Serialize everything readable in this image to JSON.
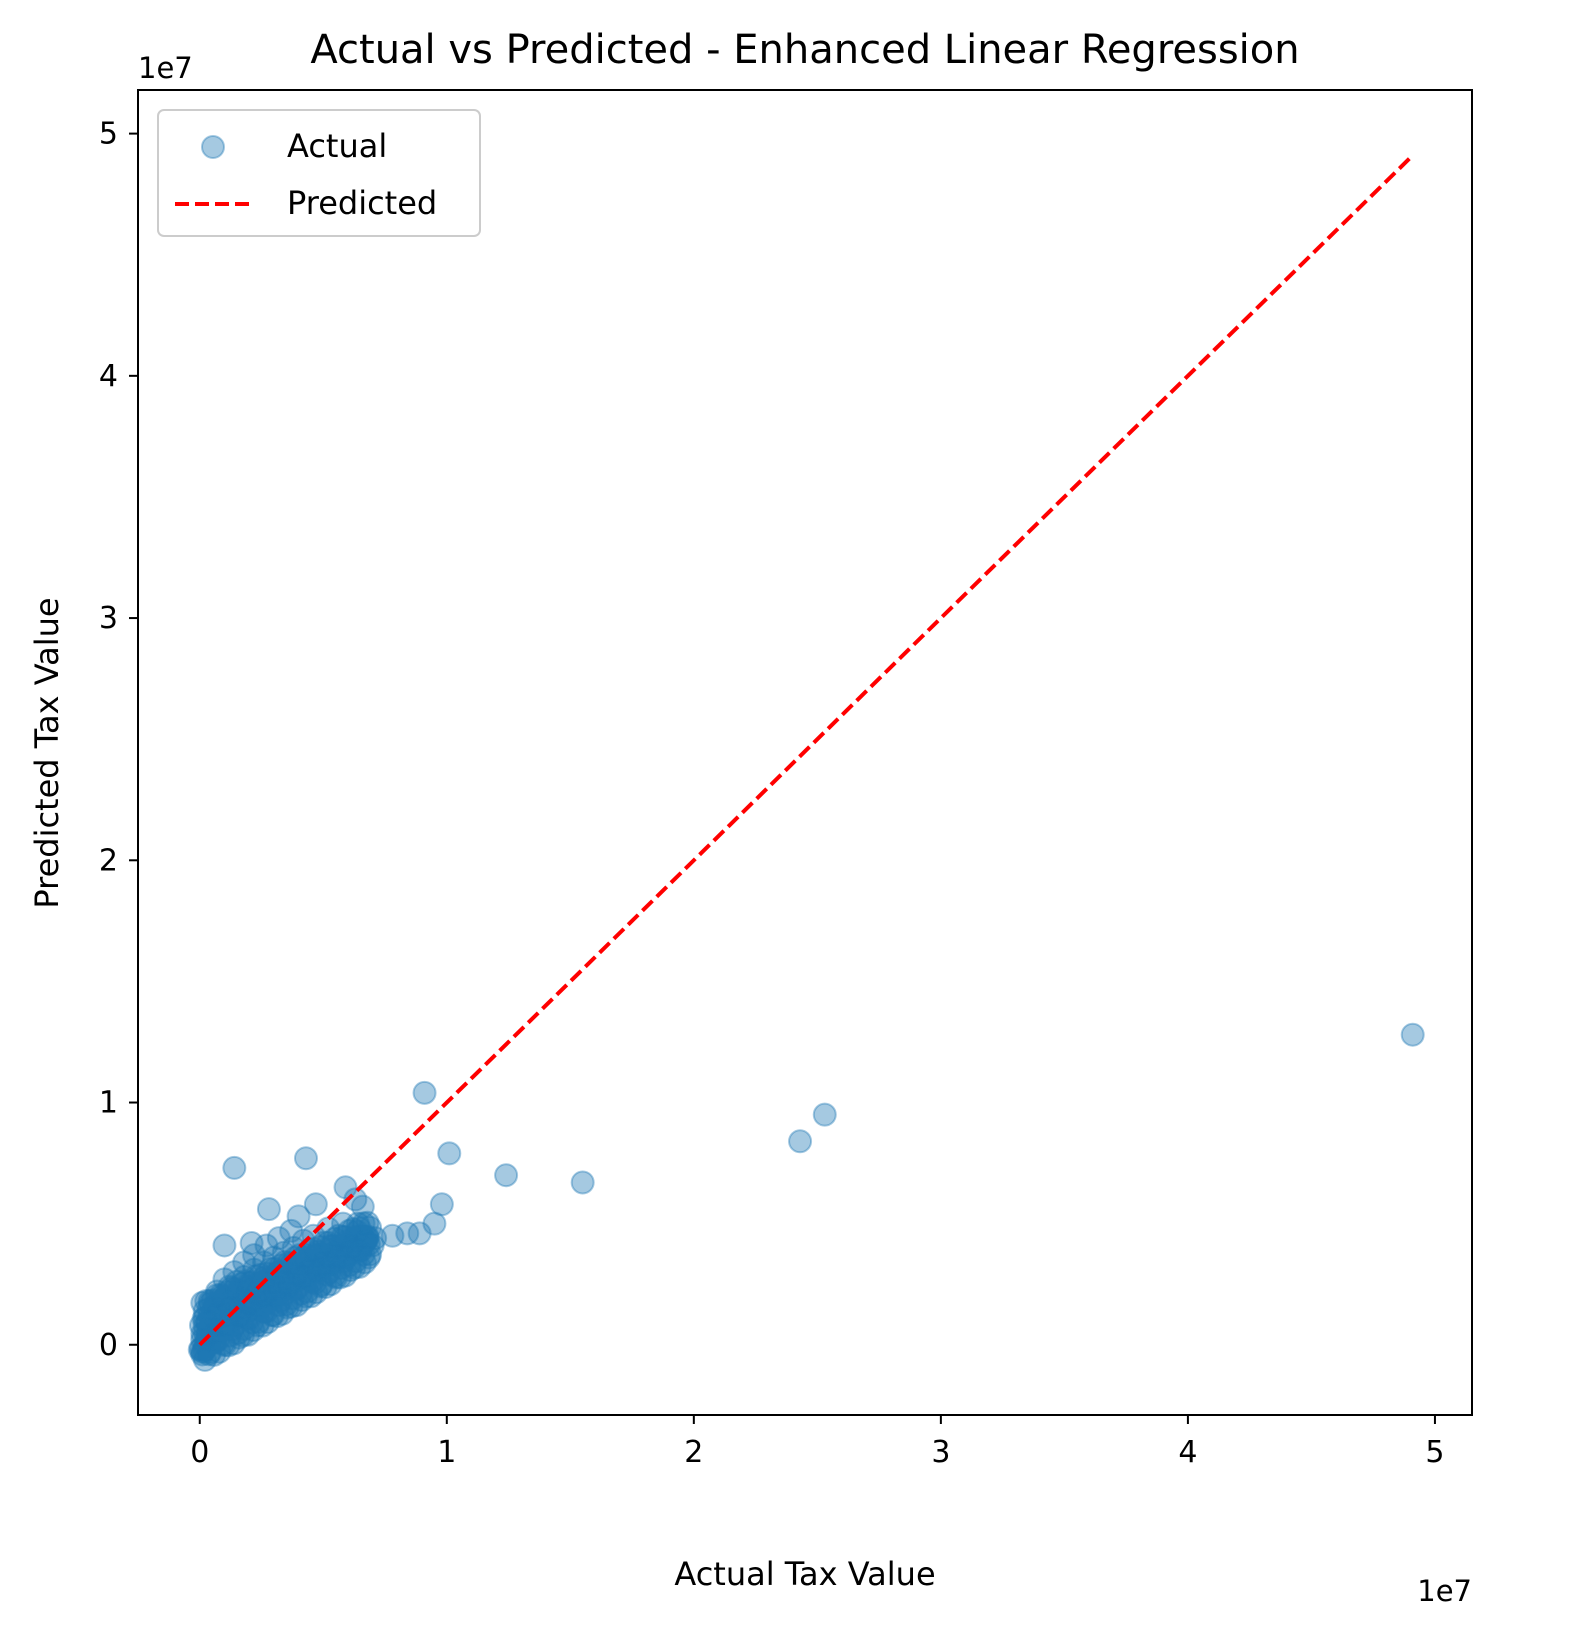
{
  "chart_data": {
    "type": "scatter",
    "title": "Actual vs Predicted - Enhanced Linear Regression",
    "xlabel": "Actual Tax Value",
    "ylabel": "Predicted Tax Value",
    "x_offset_text": "1e7",
    "y_offset_text": "1e7",
    "xlim": [
      -0.25,
      5.15
    ],
    "ylim": [
      -0.29,
      5.18
    ],
    "x_ticks": [
      0,
      1,
      2,
      3,
      4,
      5
    ],
    "x_tick_labels": [
      "0",
      "1",
      "2",
      "3",
      "4",
      "5"
    ],
    "y_ticks": [
      0,
      1,
      2,
      3,
      4,
      5
    ],
    "y_tick_labels": [
      "0",
      "1",
      "2",
      "3",
      "4",
      "5"
    ],
    "grid": false,
    "legend": {
      "position": "upper-left",
      "entries": [
        "Actual",
        "Predicted"
      ]
    },
    "series": [
      {
        "name": "Actual",
        "kind": "scatter",
        "color": "#1f77b4",
        "alpha": 0.4,
        "x": [
          0.01,
          0.02,
          0.03,
          0.05,
          0.07,
          0.1,
          0.13,
          0.16,
          0.2,
          0.25,
          0.3,
          0.35,
          0.4,
          0.45,
          0.5,
          0.55,
          0.6,
          0.65,
          0.7,
          0.02,
          0.04,
          0.06,
          0.09,
          0.12,
          0.15,
          0.18,
          0.22,
          0.26,
          0.3,
          0.34,
          0.38,
          0.42,
          0.46,
          0.52,
          0.58,
          0.64,
          0.02,
          0.04,
          0.07,
          0.1,
          0.14,
          0.18,
          0.22,
          0.27,
          0.32,
          0.37,
          0.05,
          0.08,
          0.11,
          0.15,
          0.19,
          0.24,
          0.29,
          0.01,
          0.02,
          0.03,
          0.05,
          0.08,
          0.11,
          0.14,
          0.17,
          0.2,
          0.23,
          0.28,
          0.33,
          0.38,
          0.43,
          0.48,
          0.53,
          0.58,
          0.63,
          0.68,
          0.0,
          0.01,
          0.02,
          0.04,
          0.06,
          0.12,
          0.16,
          0.2,
          0.26,
          0.31,
          0.36,
          0.41,
          0.47,
          0.56,
          0.62,
          0.67,
          0.71,
          0.78,
          0.84,
          0.89,
          0.95,
          0.91,
          1.01,
          0.98,
          1.24,
          1.55,
          2.43,
          2.53,
          4.91,
          0.14,
          0.43,
          0.59,
          0.28,
          0.47,
          0.1,
          0.21,
          0.4,
          0.63,
          0.66
        ],
        "y": [
          -0.03,
          0.0,
          0.02,
          0.04,
          0.06,
          0.08,
          0.1,
          0.12,
          0.14,
          0.16,
          0.2,
          0.23,
          0.27,
          0.29,
          0.32,
          0.35,
          0.37,
          0.39,
          0.41,
          0.08,
          0.12,
          0.16,
          0.2,
          0.24,
          0.26,
          0.28,
          0.31,
          0.34,
          0.36,
          0.38,
          0.4,
          0.43,
          0.45,
          0.48,
          0.5,
          0.5,
          0.14,
          0.18,
          0.22,
          0.27,
          0.3,
          0.34,
          0.37,
          0.41,
          0.44,
          0.47,
          0.05,
          0.08,
          0.11,
          0.15,
          0.18,
          0.22,
          0.26,
          0.02,
          0.05,
          0.09,
          0.12,
          0.15,
          0.18,
          0.2,
          0.22,
          0.24,
          0.25,
          0.27,
          0.3,
          0.32,
          0.35,
          0.37,
          0.39,
          0.41,
          0.43,
          0.44,
          -0.02,
          -0.04,
          -0.02,
          0.0,
          0.02,
          0.1,
          0.14,
          0.17,
          0.21,
          0.24,
          0.27,
          0.31,
          0.35,
          0.39,
          0.42,
          0.43,
          0.44,
          0.45,
          0.46,
          0.46,
          0.5,
          1.04,
          0.79,
          0.58,
          0.7,
          0.67,
          0.84,
          0.95,
          1.28,
          0.73,
          0.77,
          0.65,
          0.56,
          0.58,
          0.41,
          0.42,
          0.53,
          0.6,
          0.57
        ]
      },
      {
        "name": "Predicted",
        "kind": "line",
        "style": "dashed",
        "color": "#ff0000",
        "x": [
          0,
          4.91
        ],
        "y": [
          0,
          4.91
        ]
      }
    ]
  }
}
